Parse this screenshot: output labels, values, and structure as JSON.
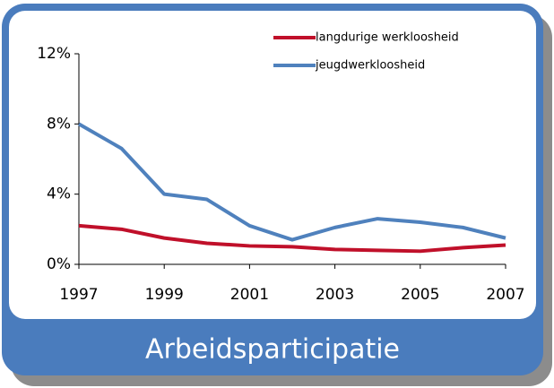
{
  "chart_data": {
    "type": "line",
    "title": "Arbeidsparticipatie",
    "x": [
      1997,
      1998,
      1999,
      2000,
      2001,
      2002,
      2003,
      2004,
      2005,
      2006,
      2007
    ],
    "series": [
      {
        "name": "langdurige werkloosheid",
        "color": "#c0102a",
        "values": [
          2.2,
          2.0,
          1.5,
          1.2,
          1.05,
          1.0,
          0.85,
          0.8,
          0.75,
          0.95,
          1.1
        ]
      },
      {
        "name": "jeugdwerkloosheid",
        "color": "#4f81bd",
        "values": [
          8.0,
          6.6,
          4.0,
          3.7,
          2.2,
          1.4,
          2.1,
          2.6,
          2.4,
          2.1,
          1.5
        ]
      }
    ],
    "xlim": [
      1997,
      2007
    ],
    "xticks": [
      1997,
      1999,
      2001,
      2003,
      2005,
      2007
    ],
    "ylim": [
      0,
      12
    ],
    "yticks": [
      {
        "value": 0,
        "label": "0%"
      },
      {
        "value": 4,
        "label": "4%"
      },
      {
        "value": 8,
        "label": "8%"
      },
      {
        "value": 12,
        "label": "12%"
      }
    ],
    "legend": "top-right",
    "grid": false
  }
}
